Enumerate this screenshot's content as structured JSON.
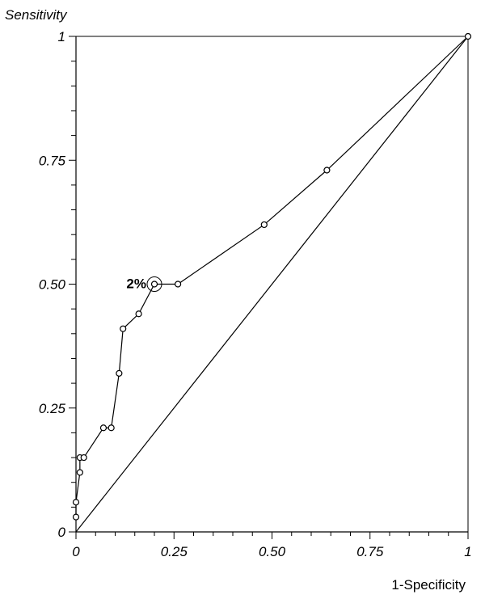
{
  "chart_data": {
    "type": "line",
    "title": "",
    "xlabel": "1-Specificity",
    "ylabel": "Sensitivity",
    "xlim": [
      0,
      1
    ],
    "ylim": [
      0,
      1
    ],
    "x_ticks": [
      0,
      0.25,
      0.5,
      0.75,
      1
    ],
    "x_tick_labels": [
      "0",
      "0.25",
      "0.50",
      "0.75",
      "1"
    ],
    "y_ticks": [
      0,
      0.25,
      0.5,
      0.75,
      1
    ],
    "y_tick_labels": [
      "0",
      "0.25",
      "0.50",
      "0.75",
      "1"
    ],
    "grid": false,
    "series": [
      {
        "x": [
          0.0,
          0.0,
          0.01,
          0.01,
          0.02,
          0.07,
          0.09,
          0.11,
          0.12,
          0.16,
          0.2,
          0.26,
          0.48,
          0.64,
          1.0
        ],
        "y": [
          0.03,
          0.06,
          0.12,
          0.15,
          0.15,
          0.21,
          0.21,
          0.32,
          0.41,
          0.44,
          0.5,
          0.5,
          0.62,
          0.73,
          1.0
        ]
      }
    ],
    "reference_line": {
      "x": [
        0,
        1
      ],
      "y": [
        0,
        1
      ]
    },
    "annotations": [
      {
        "text": "2%",
        "x": 0.2,
        "y": 0.5
      }
    ]
  }
}
